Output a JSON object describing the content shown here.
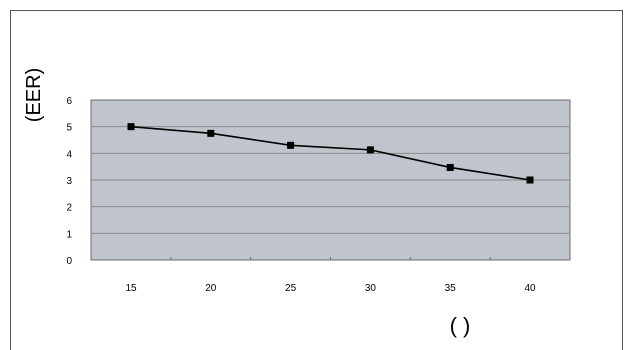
{
  "chart_data": {
    "type": "line",
    "x": [
      15,
      20,
      25,
      30,
      35,
      40
    ],
    "series": [
      {
        "values": [
          5.0,
          4.75,
          4.3,
          4.13,
          3.47,
          3.0
        ]
      }
    ],
    "ylabel": "(EER)",
    "xlabel": "( )",
    "yticks": [
      0,
      1,
      2,
      3,
      4,
      5,
      6
    ],
    "xticks": [
      15,
      20,
      25,
      30,
      35,
      40
    ],
    "ylim": [
      0,
      6
    ],
    "grid": true,
    "legend": "none",
    "colors": {
      "plot_bg": "#c0c4cc",
      "line": "#000000",
      "grid": "#8a8a8a"
    }
  }
}
